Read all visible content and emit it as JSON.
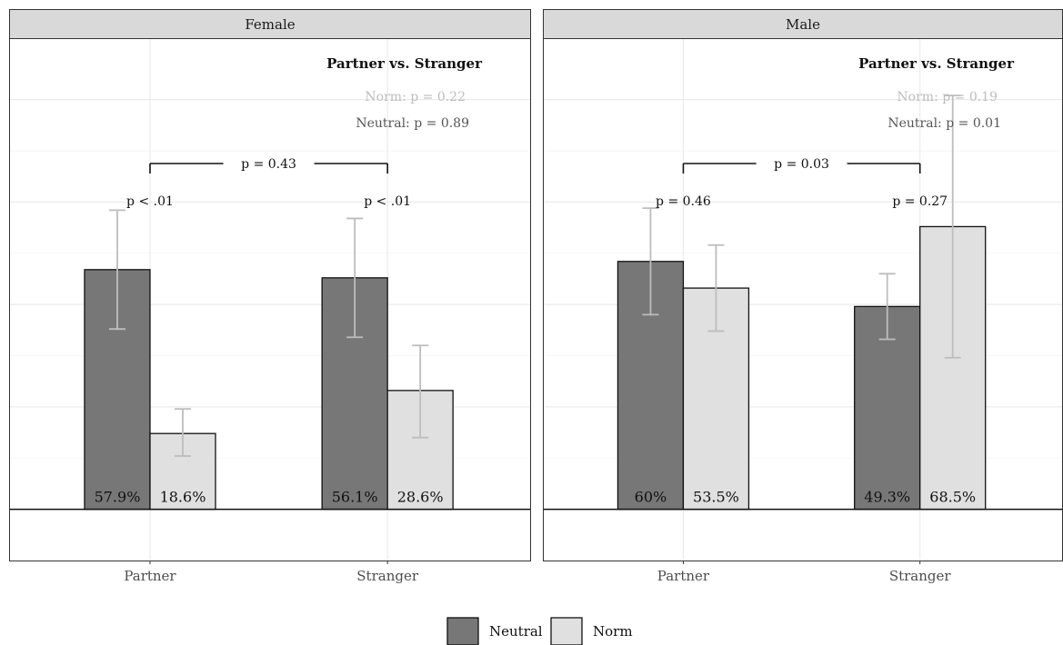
{
  "chart_data": {
    "type": "bar",
    "categories": [
      "Partner",
      "Stranger"
    ],
    "series_names": [
      "Neutral",
      "Norm"
    ],
    "colors": {
      "Neutral": "#777777",
      "Norm": "#e0e0e0",
      "errorbar": "#bdbdbd"
    },
    "ylim": [
      -0.25,
      2.3
    ],
    "grid": true,
    "legend": {
      "position": "bottom",
      "entries": [
        "Neutral",
        "Norm"
      ]
    },
    "panels": [
      {
        "title": "Female",
        "values": {
          "Neutral": [
            1.17,
            1.13
          ],
          "Norm": [
            0.37,
            0.58
          ]
        },
        "errors": {
          "Neutral": [
            [
              0.88,
              1.46
            ],
            [
              0.84,
              1.42
            ]
          ],
          "Norm": [
            [
              0.26,
              0.49
            ],
            [
              0.35,
              0.8
            ]
          ]
        },
        "bar_labels": {
          "Neutral": [
            "57.9%",
            "56.1%"
          ],
          "Norm": [
            "18.6%",
            "28.6%"
          ]
        },
        "pair_labels": [
          "p < .01",
          "p < .01"
        ],
        "bracket_label": "p = 0.43",
        "annotation": {
          "title": "Partner vs. Stranger",
          "norm": "Norm: p = 0.22",
          "neutral": "Neutral: p = 0.89"
        }
      },
      {
        "title": "Male",
        "values": {
          "Neutral": [
            1.21,
            0.99
          ],
          "Norm": [
            1.08,
            1.38
          ]
        },
        "errors": {
          "Neutral": [
            [
              0.95,
              1.47
            ],
            [
              0.83,
              1.15
            ]
          ],
          "Norm": [
            [
              0.87,
              1.29
            ],
            [
              0.74,
              2.02
            ]
          ]
        },
        "bar_labels": {
          "Neutral": [
            "60%",
            "49.3%"
          ],
          "Norm": [
            "53.5%",
            "68.5%"
          ]
        },
        "pair_labels": [
          "p = 0.46",
          "p = 0.27"
        ],
        "bracket_label": "p = 0.03",
        "annotation": {
          "title": "Partner vs. Stranger",
          "norm": "Norm: p = 0.19",
          "neutral": "Neutral: p = 0.01"
        }
      }
    ]
  }
}
